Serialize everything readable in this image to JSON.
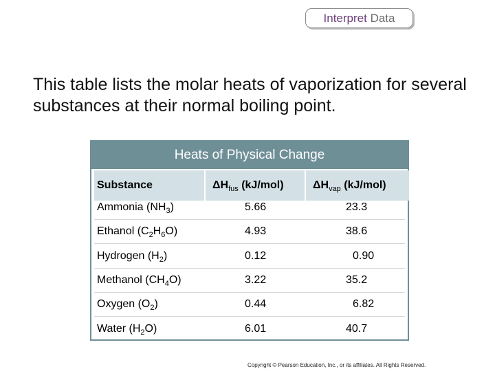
{
  "badge": {
    "strong": "Interpret",
    "rest": "Data"
  },
  "intro": "This table lists the molar heats of vaporization for several substances at their normal boiling point.",
  "table": {
    "title": "Heats of Physical Change",
    "headers": {
      "substance": "Substance",
      "fus_prefix": "ΔH",
      "fus_sub": "fus",
      "fus_unit": "(kJ/mol)",
      "vap_prefix": "ΔH",
      "vap_sub": "vap",
      "vap_unit": "(kJ/mol)"
    },
    "rows": [
      {
        "name": "Ammonia (NH",
        "sub": "3",
        "tail": ")",
        "fus": "5.66",
        "vap": "23.3"
      },
      {
        "name": "Ethanol (C",
        "sub": "2",
        "mid": "H",
        "sub2": "6",
        "tail": "O)",
        "fus": "4.93",
        "vap": "38.6"
      },
      {
        "name": "Hydrogen (H",
        "sub": "2",
        "tail": ")",
        "fus": "0.12",
        "vap": "0.90"
      },
      {
        "name": "Methanol (CH",
        "sub": "4",
        "tail": "O)",
        "fus": "3.22",
        "vap": "35.2"
      },
      {
        "name": "Oxygen (O",
        "sub": "2",
        "tail": ")",
        "fus": "0.44",
        "vap": "6.82"
      },
      {
        "name": "Water (H",
        "sub": "2",
        "tail": "O)",
        "fus": "6.01",
        "vap": "40.7"
      }
    ]
  },
  "copyright": "Copyright © Pearson Education, Inc., or its affiliates. All Rights Reserved."
}
